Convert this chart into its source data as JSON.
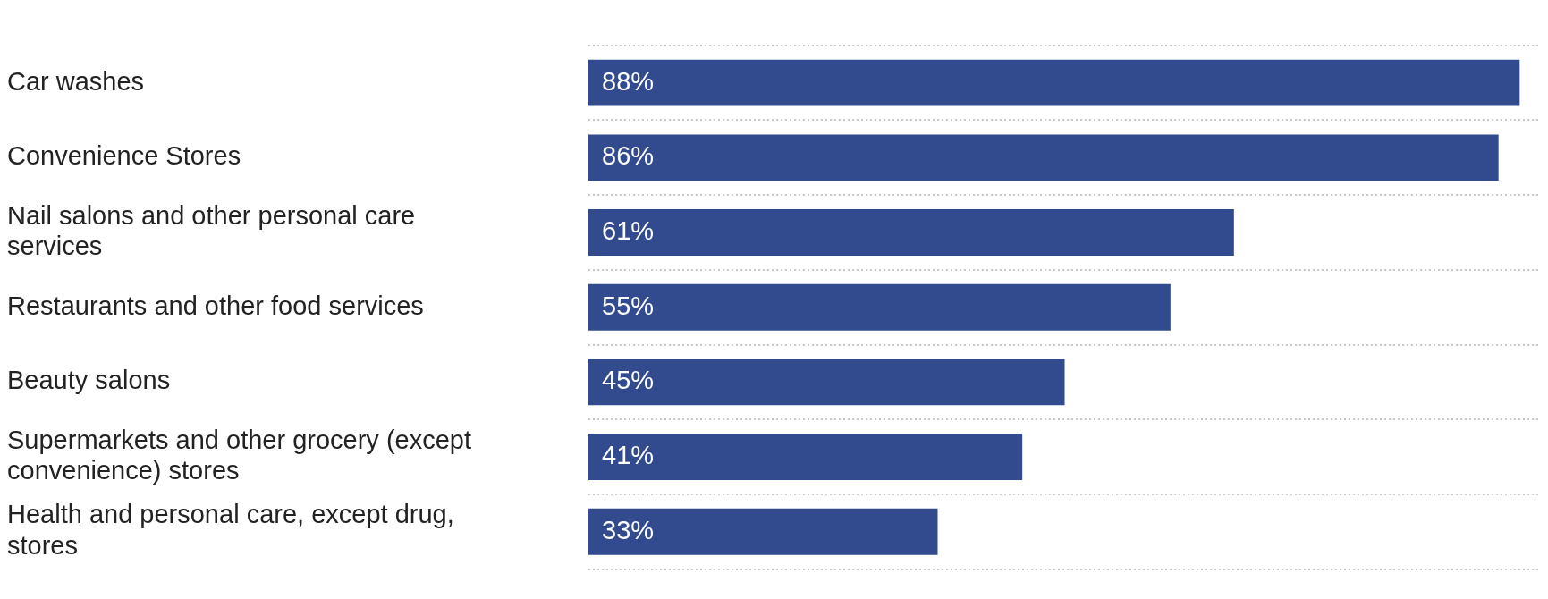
{
  "chart_data": {
    "type": "bar",
    "orientation": "horizontal",
    "categories": [
      "Car washes",
      "Convenience Stores",
      "Nail salons and other personal care services",
      "Restaurants and other food services",
      "Beauty salons",
      "Supermarkets and other grocery (except convenience) stores",
      "Health and personal care, except drug, stores"
    ],
    "values": [
      88,
      86,
      61,
      55,
      45,
      41,
      33
    ],
    "value_labels": [
      "88%",
      "86%",
      "61%",
      "55%",
      "45%",
      "41%",
      "33%"
    ],
    "color": "#314b8e",
    "grid": true,
    "legend": false
  }
}
